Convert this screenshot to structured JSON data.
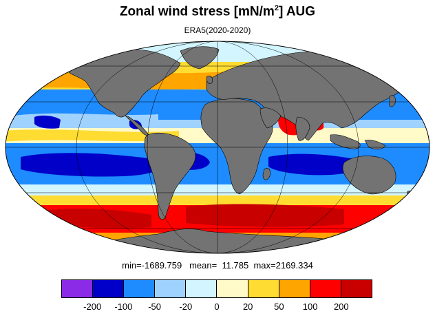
{
  "title": {
    "main": "Zonal wind stress [mN/m",
    "sup": "2",
    "tail": "] AUG"
  },
  "subtitle": "ERA5(2020-2020)",
  "stats": {
    "min_label": "min=",
    "min": "-1689.759",
    "mean_label": "mean=",
    "mean": "11.785",
    "max_label": "max=",
    "max": "2169.334"
  },
  "colorbar": {
    "colors": [
      "#8b2be8",
      "#0000c8",
      "#1e8cff",
      "#a0d2ff",
      "#d2f5ff",
      "#fffac8",
      "#ffdc32",
      "#ffa500",
      "#ff0000",
      "#c80000"
    ],
    "ticks": [
      "-200",
      "-100",
      "-50",
      "-20",
      "0",
      "20",
      "50",
      "100",
      "200"
    ]
  },
  "map": {
    "land_color": "#737373",
    "projection": "mollweide"
  }
}
